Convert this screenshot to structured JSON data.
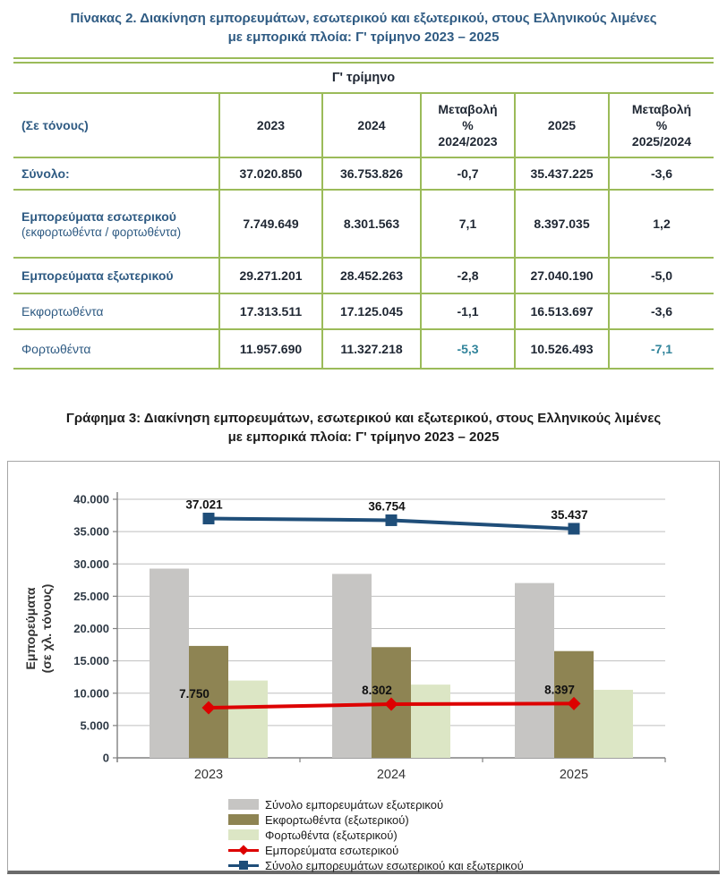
{
  "colors": {
    "table-border": "#9BBB59",
    "title-blue": "#2F5B83",
    "text-dark": "#1F2733",
    "accent-teal": "#31849B",
    "chart-border": "#A6A6A6",
    "chart-border-bottom": "#6B6B6B",
    "gridline": "#BFBFBF",
    "axis": "#808080"
  },
  "table": {
    "title_line1": "Πίνακας 2. Διακίνηση εμπορευμάτων, εσωτερικού και εξωτερικού, στους Ελληνικούς λιμένες",
    "title_line2": "με εμπορικά πλοία: Γ' τρίμηνο 2023 – 2025",
    "quarter_header": "Γ' τρίμηνο",
    "columns": [
      "(Σε τόνους)",
      "2023",
      "2024",
      "Μεταβολή\n%\n2024/2023",
      "2025",
      "Μεταβολή\n%\n2025/2024"
    ],
    "rows": [
      {
        "label": "Σύνολο:",
        "sub": "",
        "values": [
          "37.020.850",
          "36.753.826",
          "-0,7",
          "35.437.225",
          "-3,6"
        ]
      },
      {
        "label": "Εμπορεύματα εσωτερικού",
        "sub": "(εκφορτωθέντα / φορτωθέντα)",
        "values": [
          "7.749.649",
          "8.301.563",
          "7,1",
          "8.397.035",
          "1,2"
        ]
      },
      {
        "label": "Εμπορεύματα εξωτερικού",
        "sub": "",
        "values": [
          "29.271.201",
          "28.452.263",
          "-2,8",
          "27.040.190",
          "-5,0"
        ]
      },
      {
        "label": "Εκφορτωθέντα",
        "sub": "",
        "values": [
          "17.313.511",
          "17.125.045",
          "-1,1",
          "16.513.697",
          "-3,6"
        ]
      },
      {
        "label": "Φορτωθέντα",
        "sub": "",
        "values": [
          "11.957.690",
          "11.327.218",
          "-5,3",
          "10.526.493",
          "-7,1"
        ]
      }
    ]
  },
  "chart_data": {
    "type": "combo",
    "title_line1": "Γράφημα 3: Διακίνηση εμπορευμάτων, εσωτερικού και εξωτερικού, στους Ελληνικούς λιμένες",
    "title_line2": "με εμπορικά πλοία: Γ' τρίμηνο 2023 – 2025",
    "ylabel_line1": "Εμπορεύματα",
    "ylabel_line2": "(σε χλ. τόνους)",
    "categories": [
      "2023",
      "2024",
      "2025"
    ],
    "ylim": [
      0,
      40000
    ],
    "y_ticks": [
      "40.000",
      "35.000",
      "30.000",
      "25.000",
      "20.000",
      "15.000",
      "10.000",
      "5.000",
      "0"
    ],
    "grid": true,
    "legend_position": "bottom",
    "series": [
      {
        "name": "Σύνολο εμπορευμάτων εξωτερικού",
        "type": "bar",
        "color": "#C6C5C3",
        "values": [
          29271,
          28452,
          27040
        ]
      },
      {
        "name": "Εκφορτωθέντα (εξωτερικού)",
        "type": "bar",
        "color": "#8E8453",
        "values": [
          17314,
          17125,
          16514
        ]
      },
      {
        "name": "Φορτωθέντα (εξωτερικού)",
        "type": "bar",
        "color": "#DCE6C5",
        "values": [
          11958,
          11327,
          10526
        ]
      },
      {
        "name": "Εμπορεύματα εσωτερικού",
        "type": "line",
        "marker": "diamond",
        "color": "#DD0000",
        "values": [
          7750,
          8302,
          8397
        ],
        "labels": [
          "7.750",
          "8.302",
          "8.397"
        ]
      },
      {
        "name": "Σύνολο εμπορευμάτων εσωτερικού και εξωτερικού",
        "type": "line",
        "marker": "square",
        "color": "#1F4E79",
        "values": [
          37021,
          36754,
          35437
        ],
        "labels": [
          "37.021",
          "36.754",
          "35.437"
        ]
      }
    ]
  }
}
